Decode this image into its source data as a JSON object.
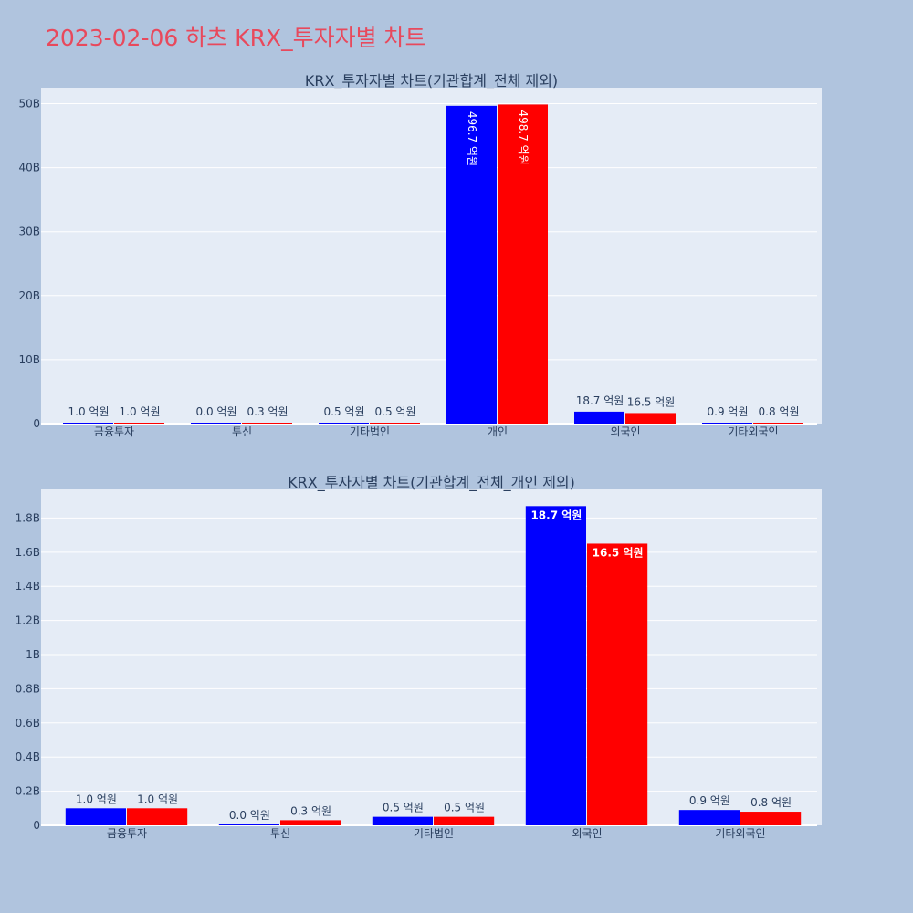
{
  "title": "2023-02-06 하츠 KRX_투자자별 차트",
  "colors": {
    "series_a": "#0000ff",
    "series_b": "#ff0000",
    "plot_bg": "#e5ecf6",
    "page_bg": "#b0c4de"
  },
  "chart_data": [
    {
      "type": "bar",
      "title": "KRX_투자자별 차트(기관합계_전체 제외)",
      "categories": [
        "금융투자",
        "투신",
        "기타법인",
        "개인",
        "외국인",
        "기타외국인"
      ],
      "series": [
        {
          "values": [
            100000000,
            0,
            50000000,
            49670000000,
            1870000000,
            90000000
          ],
          "labels": [
            "1.0 억원",
            "0.0 억원",
            "0.5 억원",
            "496.7 억원",
            "18.7 억원",
            "0.9 억원"
          ]
        },
        {
          "values": [
            100000000,
            30000000,
            50000000,
            49870000000,
            1650000000,
            80000000
          ],
          "labels": [
            "1.0 억원",
            "0.3 억원",
            "0.5 억원",
            "498.7 억원",
            "16.5 억원",
            "0.8 억원"
          ]
        }
      ],
      "yticks": [
        0,
        10000000000,
        20000000000,
        30000000000,
        40000000000,
        50000000000
      ],
      "ytick_labels": [
        "0",
        "10B",
        "20B",
        "30B",
        "40B",
        "50B"
      ],
      "ylim": [
        0,
        52500000000
      ],
      "grid": true
    },
    {
      "type": "bar",
      "title": "KRX_투자자별 차트(기관합계_전체_개인 제외)",
      "categories": [
        "금융투자",
        "투신",
        "기타법인",
        "외국인",
        "기타외국인"
      ],
      "series": [
        {
          "values": [
            100000000,
            0,
            50000000,
            1870000000,
            90000000
          ],
          "labels": [
            "1.0 억원",
            "0.0 억원",
            "0.5 억원",
            "18.7 억원",
            "0.9 억원"
          ]
        },
        {
          "values": [
            100000000,
            30000000,
            50000000,
            1650000000,
            80000000
          ],
          "labels": [
            "1.0 억원",
            "0.3 억원",
            "0.5 억원",
            "16.5 억원",
            "0.8 억원"
          ]
        }
      ],
      "yticks": [
        0,
        200000000,
        400000000,
        600000000,
        800000000,
        1000000000,
        1200000000,
        1400000000,
        1600000000,
        1800000000
      ],
      "ytick_labels": [
        "0",
        "0.2B",
        "0.4B",
        "0.6B",
        "0.8B",
        "1B",
        "1.2B",
        "1.4B",
        "1.6B",
        "1.8B"
      ],
      "ylim": [
        0,
        1968000000
      ],
      "grid": true
    }
  ]
}
